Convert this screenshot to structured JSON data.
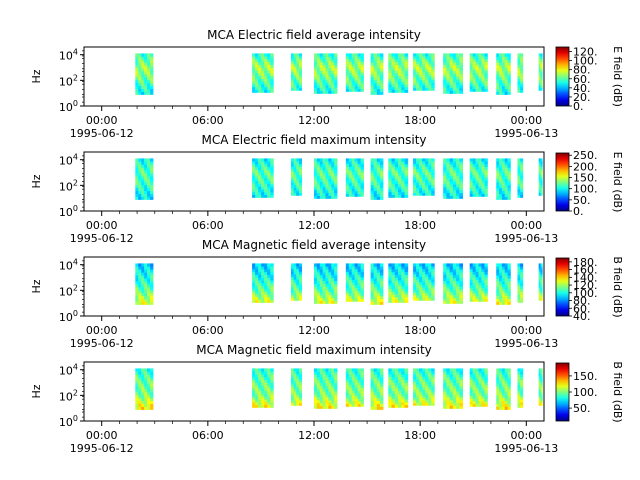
{
  "figure": {
    "panels_note": ""
  },
  "chart_data": [
    {
      "type": "heatmap",
      "title": "MCA  Electric field average intensity",
      "ylabel": "Hz",
      "y_ticks": [
        {
          "base": "10",
          "exp": "0"
        },
        {
          "base": "10",
          "exp": "2"
        },
        {
          "base": "10",
          "exp": "4"
        }
      ],
      "x_ticks": [
        "00:00",
        "06:00",
        "12:00",
        "18:00",
        "00:00"
      ],
      "x_dates": [
        "1995-06-12",
        "1995-06-13"
      ],
      "x_range_hours": [
        -1,
        25
      ],
      "colorbar_label": "E field (dB)",
      "colorbar_range": [
        0,
        130
      ],
      "colorbar_ticks": [
        "0.",
        "20.",
        "40.",
        "60.",
        "80.",
        "100.",
        "120."
      ],
      "colorscale": "jet",
      "intervals_hours": [
        [
          1.9,
          2.9
        ],
        [
          8.5,
          9.7
        ],
        [
          10.7,
          11.3
        ],
        [
          12.0,
          13.3
        ],
        [
          13.8,
          14.8
        ],
        [
          15.2,
          15.9
        ],
        [
          16.2,
          17.3
        ],
        [
          17.6,
          18.8
        ],
        [
          19.3,
          20.4
        ],
        [
          20.8,
          21.8
        ],
        [
          22.3,
          23.1
        ],
        [
          23.5,
          23.8
        ],
        [
          24.7,
          24.9
        ]
      ],
      "spectrum_level_dB": [
        [
          0,
          40
        ],
        [
          1,
          50
        ],
        [
          2,
          60
        ],
        [
          3,
          70
        ],
        [
          4,
          55
        ]
      ]
    },
    {
      "type": "heatmap",
      "title": "MCA  Electric field maximum intensity",
      "ylabel": "Hz",
      "y_ticks": [
        {
          "base": "10",
          "exp": "0"
        },
        {
          "base": "10",
          "exp": "2"
        },
        {
          "base": "10",
          "exp": "4"
        }
      ],
      "x_ticks": [
        "00:00",
        "06:00",
        "12:00",
        "18:00",
        "00:00"
      ],
      "x_dates": [
        "1995-06-12",
        "1995-06-13"
      ],
      "x_range_hours": [
        -1,
        25
      ],
      "colorbar_label": "E field (dB)",
      "colorbar_range": [
        0,
        260
      ],
      "colorbar_ticks": [
        "0.",
        "50.",
        "100.",
        "150.",
        "200.",
        "250."
      ],
      "colorscale": "jet",
      "intervals_hours": [
        [
          1.9,
          2.9
        ],
        [
          8.5,
          9.7
        ],
        [
          10.7,
          11.3
        ],
        [
          12.0,
          13.3
        ],
        [
          13.8,
          14.8
        ],
        [
          15.2,
          15.9
        ],
        [
          16.2,
          17.3
        ],
        [
          17.6,
          18.8
        ],
        [
          19.3,
          20.4
        ],
        [
          20.8,
          21.8
        ],
        [
          22.3,
          23.1
        ],
        [
          23.5,
          23.8
        ],
        [
          24.7,
          24.9
        ]
      ],
      "spectrum_level_dB": [
        [
          0,
          80
        ],
        [
          1,
          95
        ],
        [
          2,
          110
        ],
        [
          3,
          120
        ],
        [
          4,
          100
        ]
      ]
    },
    {
      "type": "heatmap",
      "title": "MCA  Magnetic field average intensity",
      "ylabel": "Hz",
      "y_ticks": [
        {
          "base": "10",
          "exp": "0"
        },
        {
          "base": "10",
          "exp": "2"
        },
        {
          "base": "10",
          "exp": "4"
        }
      ],
      "x_ticks": [
        "00:00",
        "06:00",
        "12:00",
        "18:00",
        "00:00"
      ],
      "x_dates": [
        "1995-06-12",
        "1995-06-13"
      ],
      "x_range_hours": [
        -1,
        25
      ],
      "colorbar_label": "B field (dB)",
      "colorbar_range": [
        40,
        190
      ],
      "colorbar_ticks": [
        "40.",
        "60.",
        "80.",
        "100.",
        "120.",
        "140.",
        "160.",
        "180."
      ],
      "colorscale": "jet",
      "intervals_hours": [
        [
          1.9,
          2.9
        ],
        [
          8.5,
          9.7
        ],
        [
          10.7,
          11.3
        ],
        [
          12.0,
          13.3
        ],
        [
          13.8,
          14.8
        ],
        [
          15.2,
          15.9
        ],
        [
          16.2,
          17.3
        ],
        [
          17.6,
          18.8
        ],
        [
          19.3,
          20.4
        ],
        [
          20.8,
          21.8
        ],
        [
          22.3,
          23.1
        ],
        [
          23.5,
          23.8
        ],
        [
          24.7,
          24.9
        ]
      ],
      "spectrum_level_dB": [
        [
          0,
          150
        ],
        [
          1,
          130
        ],
        [
          2,
          110
        ],
        [
          3,
          100
        ],
        [
          4,
          90
        ]
      ]
    },
    {
      "type": "heatmap",
      "title": "MCA  Magnetic field maximum intensity",
      "ylabel": "Hz",
      "y_ticks": [
        {
          "base": "10",
          "exp": "0"
        },
        {
          "base": "10",
          "exp": "2"
        },
        {
          "base": "10",
          "exp": "4"
        }
      ],
      "x_ticks": [
        "00:00",
        "06:00",
        "12:00",
        "18:00",
        "00:00"
      ],
      "x_dates": [
        "1995-06-12",
        "1995-06-13"
      ],
      "x_range_hours": [
        -1,
        25
      ],
      "colorbar_label": "B field (dB)",
      "colorbar_range": [
        10,
        190
      ],
      "colorbar_ticks": [
        "50.",
        "100.",
        "150."
      ],
      "colorscale": "jet",
      "intervals_hours": [
        [
          1.9,
          2.9
        ],
        [
          8.5,
          9.7
        ],
        [
          10.7,
          11.3
        ],
        [
          12.0,
          13.3
        ],
        [
          13.8,
          14.8
        ],
        [
          15.2,
          15.9
        ],
        [
          16.2,
          17.3
        ],
        [
          17.6,
          18.8
        ],
        [
          19.3,
          20.4
        ],
        [
          20.8,
          21.8
        ],
        [
          22.3,
          23.1
        ],
        [
          23.5,
          23.8
        ],
        [
          24.7,
          24.9
        ]
      ],
      "spectrum_level_dB": [
        [
          0,
          150
        ],
        [
          1,
          125
        ],
        [
          2,
          100
        ],
        [
          3,
          95
        ],
        [
          4,
          85
        ]
      ]
    }
  ]
}
